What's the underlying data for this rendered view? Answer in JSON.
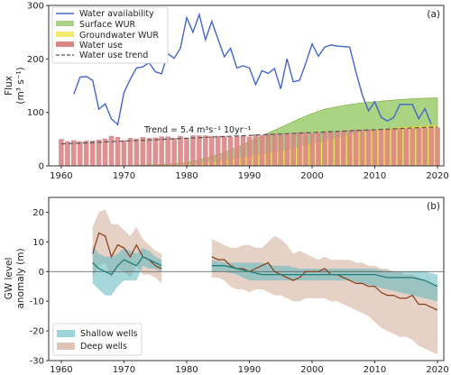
{
  "chart_data": [
    {
      "panel_label": "(a)",
      "type": "line",
      "ylabel": "Flux",
      "ylabel_unit": "(m³ s⁻¹)",
      "xlim": [
        1958,
        2021
      ],
      "ylim": [
        0,
        300
      ],
      "xticks": [
        1960,
        1970,
        1980,
        1990,
        2000,
        2010,
        2020
      ],
      "yticks": [
        0,
        100,
        200,
        300
      ],
      "legend_position": "top-left",
      "legend": [
        "Water availability",
        "Surface WUR",
        "Groundwater WUR",
        "Water use",
        "Water use trend"
      ],
      "trend_label": "Trend = 5.4 m³s⁻¹ 10yr⁻¹",
      "colors": {
        "availability": "#4466cc",
        "surface": "#88c24d",
        "groundwater": "#f2e655",
        "use": "#d98686",
        "trend": "#555555"
      },
      "water_availability": {
        "x": [
          1962,
          1963,
          1964,
          1965,
          1966,
          1967,
          1968,
          1969,
          1970,
          1971,
          1972,
          1973,
          1974,
          1975,
          1976,
          1977,
          1978,
          1979,
          1980,
          1981,
          1982,
          1983,
          1984,
          1985,
          1986,
          1987,
          1988,
          1989,
          1990,
          1991,
          1992,
          1993,
          1994,
          1995,
          1996,
          1997,
          1998,
          1999,
          2000,
          2001,
          2002,
          2003,
          2004,
          2005,
          2006,
          2007,
          2008,
          2009,
          2010,
          2011,
          2012,
          2013,
          2014,
          2015,
          2016,
          2017,
          2018,
          2019
        ],
        "y": [
          134,
          166,
          167,
          160,
          106,
          116,
          88,
          77,
          137,
          162,
          183,
          185,
          193,
          176,
          172,
          210,
          201,
          220,
          277,
          250,
          283,
          236,
          270,
          237,
          204,
          220,
          183,
          187,
          183,
          152,
          178,
          173,
          182,
          144,
          200,
          157,
          160,
          192,
          228,
          205,
          222,
          226,
          224,
          223,
          222,
          175,
          133,
          103,
          120,
          91,
          84,
          90,
          115,
          115,
          115,
          88,
          107,
          78
        ]
      },
      "water_use": {
        "x": [
          1960,
          1961,
          1962,
          1963,
          1964,
          1965,
          1966,
          1967,
          1968,
          1969,
          1970,
          1971,
          1972,
          1973,
          1974,
          1975,
          1976,
          1977,
          1978,
          1979,
          1980,
          1981,
          1982,
          1983,
          1984,
          1985,
          1986,
          1987,
          1988,
          1989,
          1990,
          1991,
          1992,
          1993,
          1994,
          1995,
          1996,
          1997,
          1998,
          1999,
          2000,
          2001,
          2002,
          2003,
          2004,
          2005,
          2006,
          2007,
          2008,
          2009,
          2010,
          2011,
          2012,
          2013,
          2014,
          2015,
          2016,
          2017,
          2018,
          2019,
          2020
        ],
        "y": [
          50,
          46,
          48,
          46,
          47,
          47,
          49,
          51,
          56,
          54,
          48,
          52,
          51,
          54,
          52,
          53,
          55,
          55,
          52,
          56,
          52,
          57,
          57,
          57,
          56,
          56,
          56,
          54,
          56,
          57,
          55,
          59,
          57,
          60,
          60,
          61,
          61,
          62,
          63,
          63,
          61,
          62,
          63,
          65,
          64,
          66,
          66,
          68,
          68,
          68,
          67,
          69,
          68,
          69,
          70,
          70,
          70,
          71,
          72,
          72,
          72
        ]
      },
      "surface_wur": {
        "x": [
          1970,
          1975,
          1980,
          1983,
          1986,
          1989,
          1992,
          1995,
          1998,
          2000,
          2002,
          2005,
          2008,
          2011,
          2014,
          2017,
          2020
        ],
        "y": [
          0,
          2,
          6,
          14,
          25,
          40,
          56,
          72,
          88,
          98,
          106,
          113,
          118,
          121,
          124,
          126,
          127
        ]
      },
      "groundwater_wur": {
        "x": [
          1970,
          1975,
          1980,
          1983,
          1986,
          1989,
          1992,
          1995,
          1998,
          2000,
          2002,
          2005,
          2008,
          2011,
          2014,
          2017,
          2020
        ],
        "y": [
          0,
          1,
          3,
          6,
          10,
          16,
          22,
          29,
          36,
          42,
          47,
          56,
          63,
          68,
          72,
          74,
          76
        ]
      },
      "trend_line": {
        "x": [
          1960,
          2020
        ],
        "y": [
          41,
          73
        ]
      }
    },
    {
      "panel_label": "(b)",
      "type": "line",
      "ylabel": "GW level",
      "ylabel_line2": "anomaly (m)",
      "xlim": [
        1958,
        2021
      ],
      "ylim": [
        -30,
        25
      ],
      "xticks": [
        1960,
        1970,
        1980,
        1990,
        2000,
        2010,
        2020
      ],
      "yticks": [
        -30,
        -20,
        -10,
        0,
        10,
        20
      ],
      "legend_position": "bottom-left",
      "legend": [
        "Shallow wells",
        "Deep wells"
      ],
      "colors": {
        "shallow_line": "#1f7f7a",
        "shallow_band": "#5db8bd",
        "deep_line": "#8b3a14",
        "deep_band": "#d8b8a8"
      },
      "shallow_wells": [
        {
          "x": [
            1965,
            1966,
            1967,
            1968,
            1969,
            1970,
            1971,
            1972,
            1973,
            1974,
            1975,
            1976
          ],
          "mean": [
            3,
            1,
            0,
            -1,
            2,
            4,
            3,
            2,
            5,
            4,
            3,
            2
          ],
          "upper": [
            9,
            6,
            5,
            5,
            6,
            8,
            7,
            6,
            8,
            7,
            5,
            4
          ],
          "lower": [
            -4,
            -6,
            -8,
            -8,
            -5,
            -3,
            -3,
            -3,
            2,
            1,
            1,
            0
          ]
        },
        {
          "x": [
            1984,
            1986,
            1988,
            1990,
            1992,
            1994,
            1996,
            1998,
            2000,
            2002,
            2004,
            2006,
            2008,
            2010,
            2012,
            2014,
            2016,
            2018,
            2020
          ],
          "mean": [
            2,
            2,
            1,
            0,
            -1,
            -1,
            -1,
            -1,
            -1,
            -1,
            -1,
            -1,
            -1,
            -1,
            -2,
            -2,
            -2,
            -3,
            -5
          ],
          "upper": [
            4,
            3,
            3,
            3,
            3,
            2,
            2,
            1,
            1,
            1,
            1,
            1,
            1,
            1,
            0,
            0,
            0,
            0,
            -1
          ],
          "lower": [
            0,
            0,
            -1,
            -3,
            -3,
            -3,
            -3,
            -3,
            -3,
            -3,
            -3,
            -3,
            -4,
            -5,
            -6,
            -7,
            -8,
            -9,
            -10
          ]
        }
      ],
      "deep_wells": [
        {
          "x": [
            1965,
            1966,
            1967,
            1968,
            1969,
            1970,
            1971,
            1972,
            1973,
            1974,
            1975,
            1976
          ],
          "mean": [
            6,
            13,
            12,
            5,
            9,
            8,
            5,
            9,
            5,
            4,
            2,
            1
          ],
          "upper": [
            15,
            20,
            21,
            16,
            16,
            14,
            12,
            15,
            11,
            9,
            7,
            6
          ],
          "lower": [
            -2,
            2,
            3,
            -2,
            1,
            0,
            -2,
            2,
            -1,
            -1,
            -2,
            -4
          ]
        },
        {
          "x": [
            1984,
            1985,
            1986,
            1987,
            1988,
            1989,
            1990,
            1991,
            1992,
            1993,
            1994,
            1995,
            1996,
            1997,
            1998,
            1999,
            2000,
            2001,
            2002,
            2003,
            2004,
            2005,
            2006,
            2007,
            2008,
            2009,
            2010,
            2011,
            2012,
            2013,
            2014,
            2015,
            2016,
            2017,
            2018,
            2019,
            2020
          ],
          "mean": [
            5,
            4,
            4,
            2,
            1,
            1,
            0,
            1,
            2,
            3,
            0,
            -1,
            -2,
            -3,
            -2,
            0,
            0,
            0,
            1,
            -1,
            -1,
            -2,
            -3,
            -4,
            -4,
            -5,
            -5,
            -7,
            -8,
            -8,
            -9,
            -9,
            -8,
            -11,
            -11,
            -12,
            -13
          ],
          "upper": [
            11,
            10,
            9,
            8,
            8,
            9,
            9,
            8,
            8,
            10,
            12,
            11,
            9,
            6,
            7,
            6,
            5,
            4,
            5,
            4,
            4,
            4,
            4,
            3,
            3,
            2,
            2,
            1,
            1,
            0,
            0,
            -1,
            -1,
            -2,
            -3,
            -4,
            -5
          ],
          "lower": [
            -2,
            -2,
            -3,
            -5,
            -6,
            -6,
            -7,
            -6,
            -6,
            -7,
            -8,
            -8,
            -9,
            -10,
            -10,
            -9,
            -9,
            -9,
            -9,
            -10,
            -10,
            -11,
            -12,
            -13,
            -14,
            -15,
            -17,
            -19,
            -20,
            -21,
            -22,
            -22,
            -23,
            -25,
            -26,
            -27,
            -28
          ]
        }
      ]
    }
  ]
}
